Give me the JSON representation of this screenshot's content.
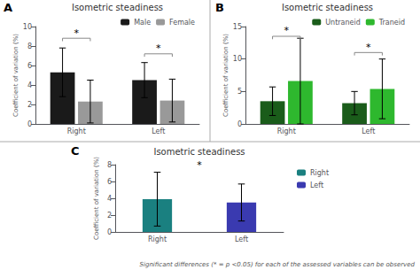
{
  "chart_data": [
    {
      "type": "bar",
      "panel_label": "A",
      "title": "Isometric steadiness",
      "y_label": "Coefficient of variation (%)",
      "categories": [
        "Right",
        "Left"
      ],
      "series": [
        {
          "name": "Male",
          "color": "#1a1a1a",
          "values": [
            5.3,
            4.5
          ],
          "errors": [
            2.5,
            1.8
          ]
        },
        {
          "name": "Female",
          "color": "#999999",
          "values": [
            2.3,
            2.4
          ],
          "errors": [
            2.2,
            2.2
          ]
        }
      ],
      "ylim": [
        0,
        10
      ],
      "yticks": [
        0,
        2,
        4,
        6,
        8,
        10
      ],
      "grid": false,
      "legend": "upper right",
      "annotations": [
        {
          "text": "*",
          "x": "Right",
          "y": 8.8,
          "color": "#888888"
        },
        {
          "text": "*",
          "x": "Left",
          "y": 7.2,
          "color": "#888888"
        }
      ]
    },
    {
      "type": "bar",
      "panel_label": "B",
      "title": "Isometric steadiness",
      "y_label": "Coefficient of variation (%)",
      "categories": [
        "Right",
        "Left"
      ],
      "series": [
        {
          "name": "Untraneid",
          "color": "#1a5c1a",
          "values": [
            3.5,
            3.2
          ],
          "errors": [
            2.2,
            1.8
          ]
        },
        {
          "name": "Traneid",
          "color": "#2eb82e",
          "values": [
            6.6,
            5.4
          ],
          "errors": [
            6.6,
            4.6
          ]
        }
      ],
      "ylim": [
        0,
        15
      ],
      "yticks": [
        0,
        5,
        10,
        15
      ],
      "grid": false,
      "legend": "upper right",
      "annotations": [
        {
          "text": "*",
          "x": "Right",
          "y": 13.5,
          "color": "#888888"
        },
        {
          "text": "*",
          "x": "Left",
          "y": 11.0,
          "color": "#888888"
        }
      ]
    },
    {
      "type": "bar",
      "panel_label": "C",
      "title": "Isometric steadiness",
      "y_label": "Coefficient of variation (%)",
      "categories": [
        "Right",
        "Left"
      ],
      "series": [
        {
          "name": "Right",
          "color": "#1a8080",
          "values": [
            3.9,
            null
          ],
          "errors": [
            3.2,
            null
          ]
        },
        {
          "name": "Left",
          "color": "#3a3ab0",
          "values": [
            null,
            3.5
          ],
          "errors": [
            null,
            2.2
          ]
        }
      ],
      "ylim": [
        0,
        8
      ],
      "yticks": [
        0,
        2,
        4,
        6,
        8
      ],
      "grid": false,
      "legend": "upper right",
      "annotations": [
        {
          "text": "*",
          "y": 7.4
        }
      ]
    }
  ],
  "footnote": "Significant differences (* = p <0.05) for each of the assessed variables can be observed"
}
